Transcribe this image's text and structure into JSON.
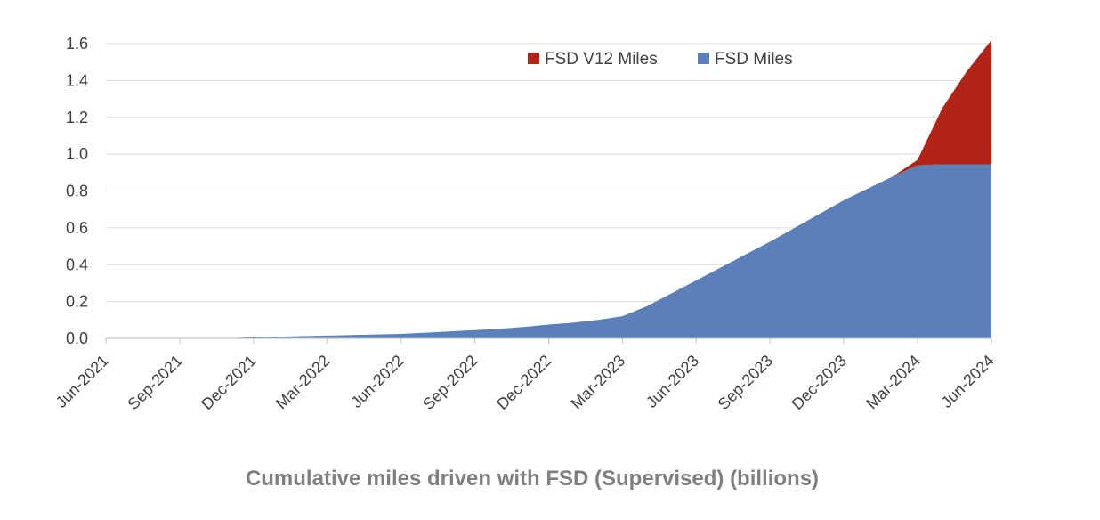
{
  "chart_data": {
    "type": "area",
    "title": "Cumulative miles driven with FSD (Supervised) (billions)",
    "xlabel": "",
    "ylabel": "",
    "ylim": [
      0,
      1.6
    ],
    "yticks": [
      "0.0",
      "0.2",
      "0.4",
      "0.6",
      "0.8",
      "1.0",
      "1.2",
      "1.4",
      "1.6"
    ],
    "stacked": true,
    "grid": true,
    "legend_position": "top-right",
    "x_tick_labels": [
      "Jun-2021",
      "Sep-2021",
      "Dec-2021",
      "Mar-2022",
      "Jun-2022",
      "Sep-2022",
      "Dec-2022",
      "Mar-2023",
      "Jun-2023",
      "Sep-2023",
      "Dec-2023",
      "Mar-2024",
      "Jun-2024"
    ],
    "x": [
      "Jun-2021",
      "Jul-2021",
      "Aug-2021",
      "Sep-2021",
      "Oct-2021",
      "Nov-2021",
      "Dec-2021",
      "Jan-2022",
      "Feb-2022",
      "Mar-2022",
      "Apr-2022",
      "May-2022",
      "Jun-2022",
      "Jul-2022",
      "Aug-2022",
      "Sep-2022",
      "Oct-2022",
      "Nov-2022",
      "Dec-2022",
      "Jan-2023",
      "Feb-2023",
      "Mar-2023",
      "Apr-2023",
      "May-2023",
      "Jun-2023",
      "Jul-2023",
      "Aug-2023",
      "Sep-2023",
      "Oct-2023",
      "Nov-2023",
      "Dec-2023",
      "Jan-2024",
      "Feb-2024",
      "Mar-2024",
      "Apr-2024",
      "May-2024",
      "Jun-2024"
    ],
    "series": [
      {
        "name": "FSD Miles",
        "color": "#5b7fb9",
        "values": [
          0,
          0,
          0,
          0,
          0.001,
          0.002,
          0.006,
          0.009,
          0.012,
          0.015,
          0.018,
          0.021,
          0.024,
          0.031,
          0.038,
          0.045,
          0.052,
          0.062,
          0.075,
          0.085,
          0.1,
          0.12,
          0.175,
          0.245,
          0.315,
          0.385,
          0.455,
          0.525,
          0.6,
          0.675,
          0.75,
          0.815,
          0.88,
          0.94,
          0.945,
          0.945,
          0.945
        ]
      },
      {
        "name": "FSD V12 Miles",
        "color": "#b22416",
        "values": [
          0,
          0,
          0,
          0,
          0,
          0,
          0,
          0,
          0,
          0,
          0,
          0,
          0,
          0,
          0,
          0,
          0,
          0,
          0,
          0,
          0,
          0,
          0,
          0,
          0,
          0,
          0,
          0,
          0,
          0,
          0,
          0,
          0,
          0.03,
          0.305,
          0.505,
          0.675
        ]
      }
    ]
  }
}
